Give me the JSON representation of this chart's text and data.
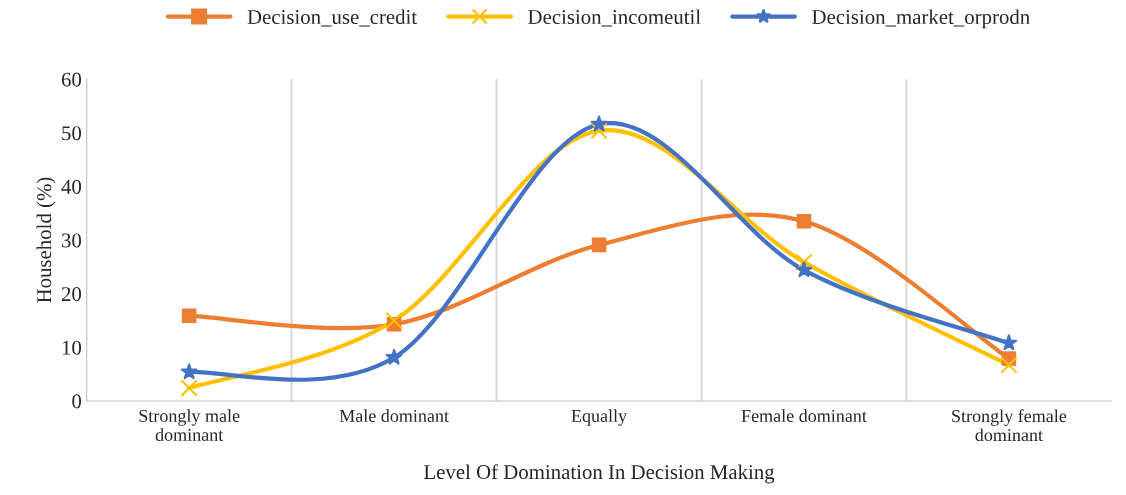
{
  "chart_data": {
    "type": "line",
    "xlabel": "Level Of Domination In Decision Making",
    "ylabel": "Household (%)",
    "categories": [
      "Strongly male dominant",
      "Male dominant",
      "Equally",
      "Female dominant",
      "Strongly female dominant"
    ],
    "series": [
      {
        "name": "Decision_use_credit",
        "color": "#ed7d31",
        "marker": "square",
        "values": [
          15.9,
          14.3,
          29.1,
          33.5,
          7.9
        ]
      },
      {
        "name": "Decision_incomeutil",
        "color": "#ffc000",
        "marker": "cross",
        "values": [
          2.4,
          15,
          50.4,
          25.9,
          6.7
        ]
      },
      {
        "name": "Decision_market_orprodn",
        "color": "#4472c4",
        "marker": "star",
        "values": [
          5.4,
          8.1,
          51.6,
          24.4,
          10.8
        ]
      }
    ],
    "ylim": [
      0,
      60
    ],
    "yticks": [
      0,
      10,
      20,
      30,
      40,
      50,
      60
    ],
    "grid": "x",
    "legend": "top",
    "line_style": "solid"
  }
}
